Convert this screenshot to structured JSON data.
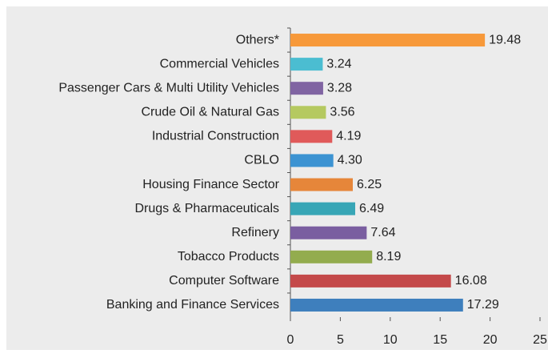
{
  "chart_data": {
    "type": "bar",
    "orientation": "horizontal",
    "categories": [
      "Others*",
      "Commercial Vehicles",
      "Passenger Cars & Multi Utility Vehicles",
      "Crude Oil & Natural Gas",
      "Industrial Construction",
      "CBLO",
      "Housing Finance Sector",
      "Drugs & Pharmaceuticals",
      "Refinery",
      "Tobacco Products",
      "Computer Software",
      "Banking and Finance Services"
    ],
    "values": [
      19.48,
      3.24,
      3.28,
      3.56,
      4.19,
      4.3,
      6.25,
      6.49,
      7.64,
      8.19,
      16.08,
      17.29
    ],
    "value_labels": [
      "19.48",
      "3.24",
      "3.28",
      "3.56",
      "4.19",
      "4.30",
      "6.25",
      "6.49",
      "7.64",
      "8.19",
      "16.08",
      "17.29"
    ],
    "colors": [
      "#f7993a",
      "#4bbdd1",
      "#8064a2",
      "#b5c960",
      "#e05a5a",
      "#3c93d2",
      "#e6863a",
      "#38a6b6",
      "#7a5ea0",
      "#93ac4e",
      "#c4494a",
      "#3e7fbd"
    ],
    "xlim": [
      0,
      25
    ],
    "xticks": [
      0,
      5,
      10,
      15,
      20,
      25
    ],
    "grid": false
  }
}
